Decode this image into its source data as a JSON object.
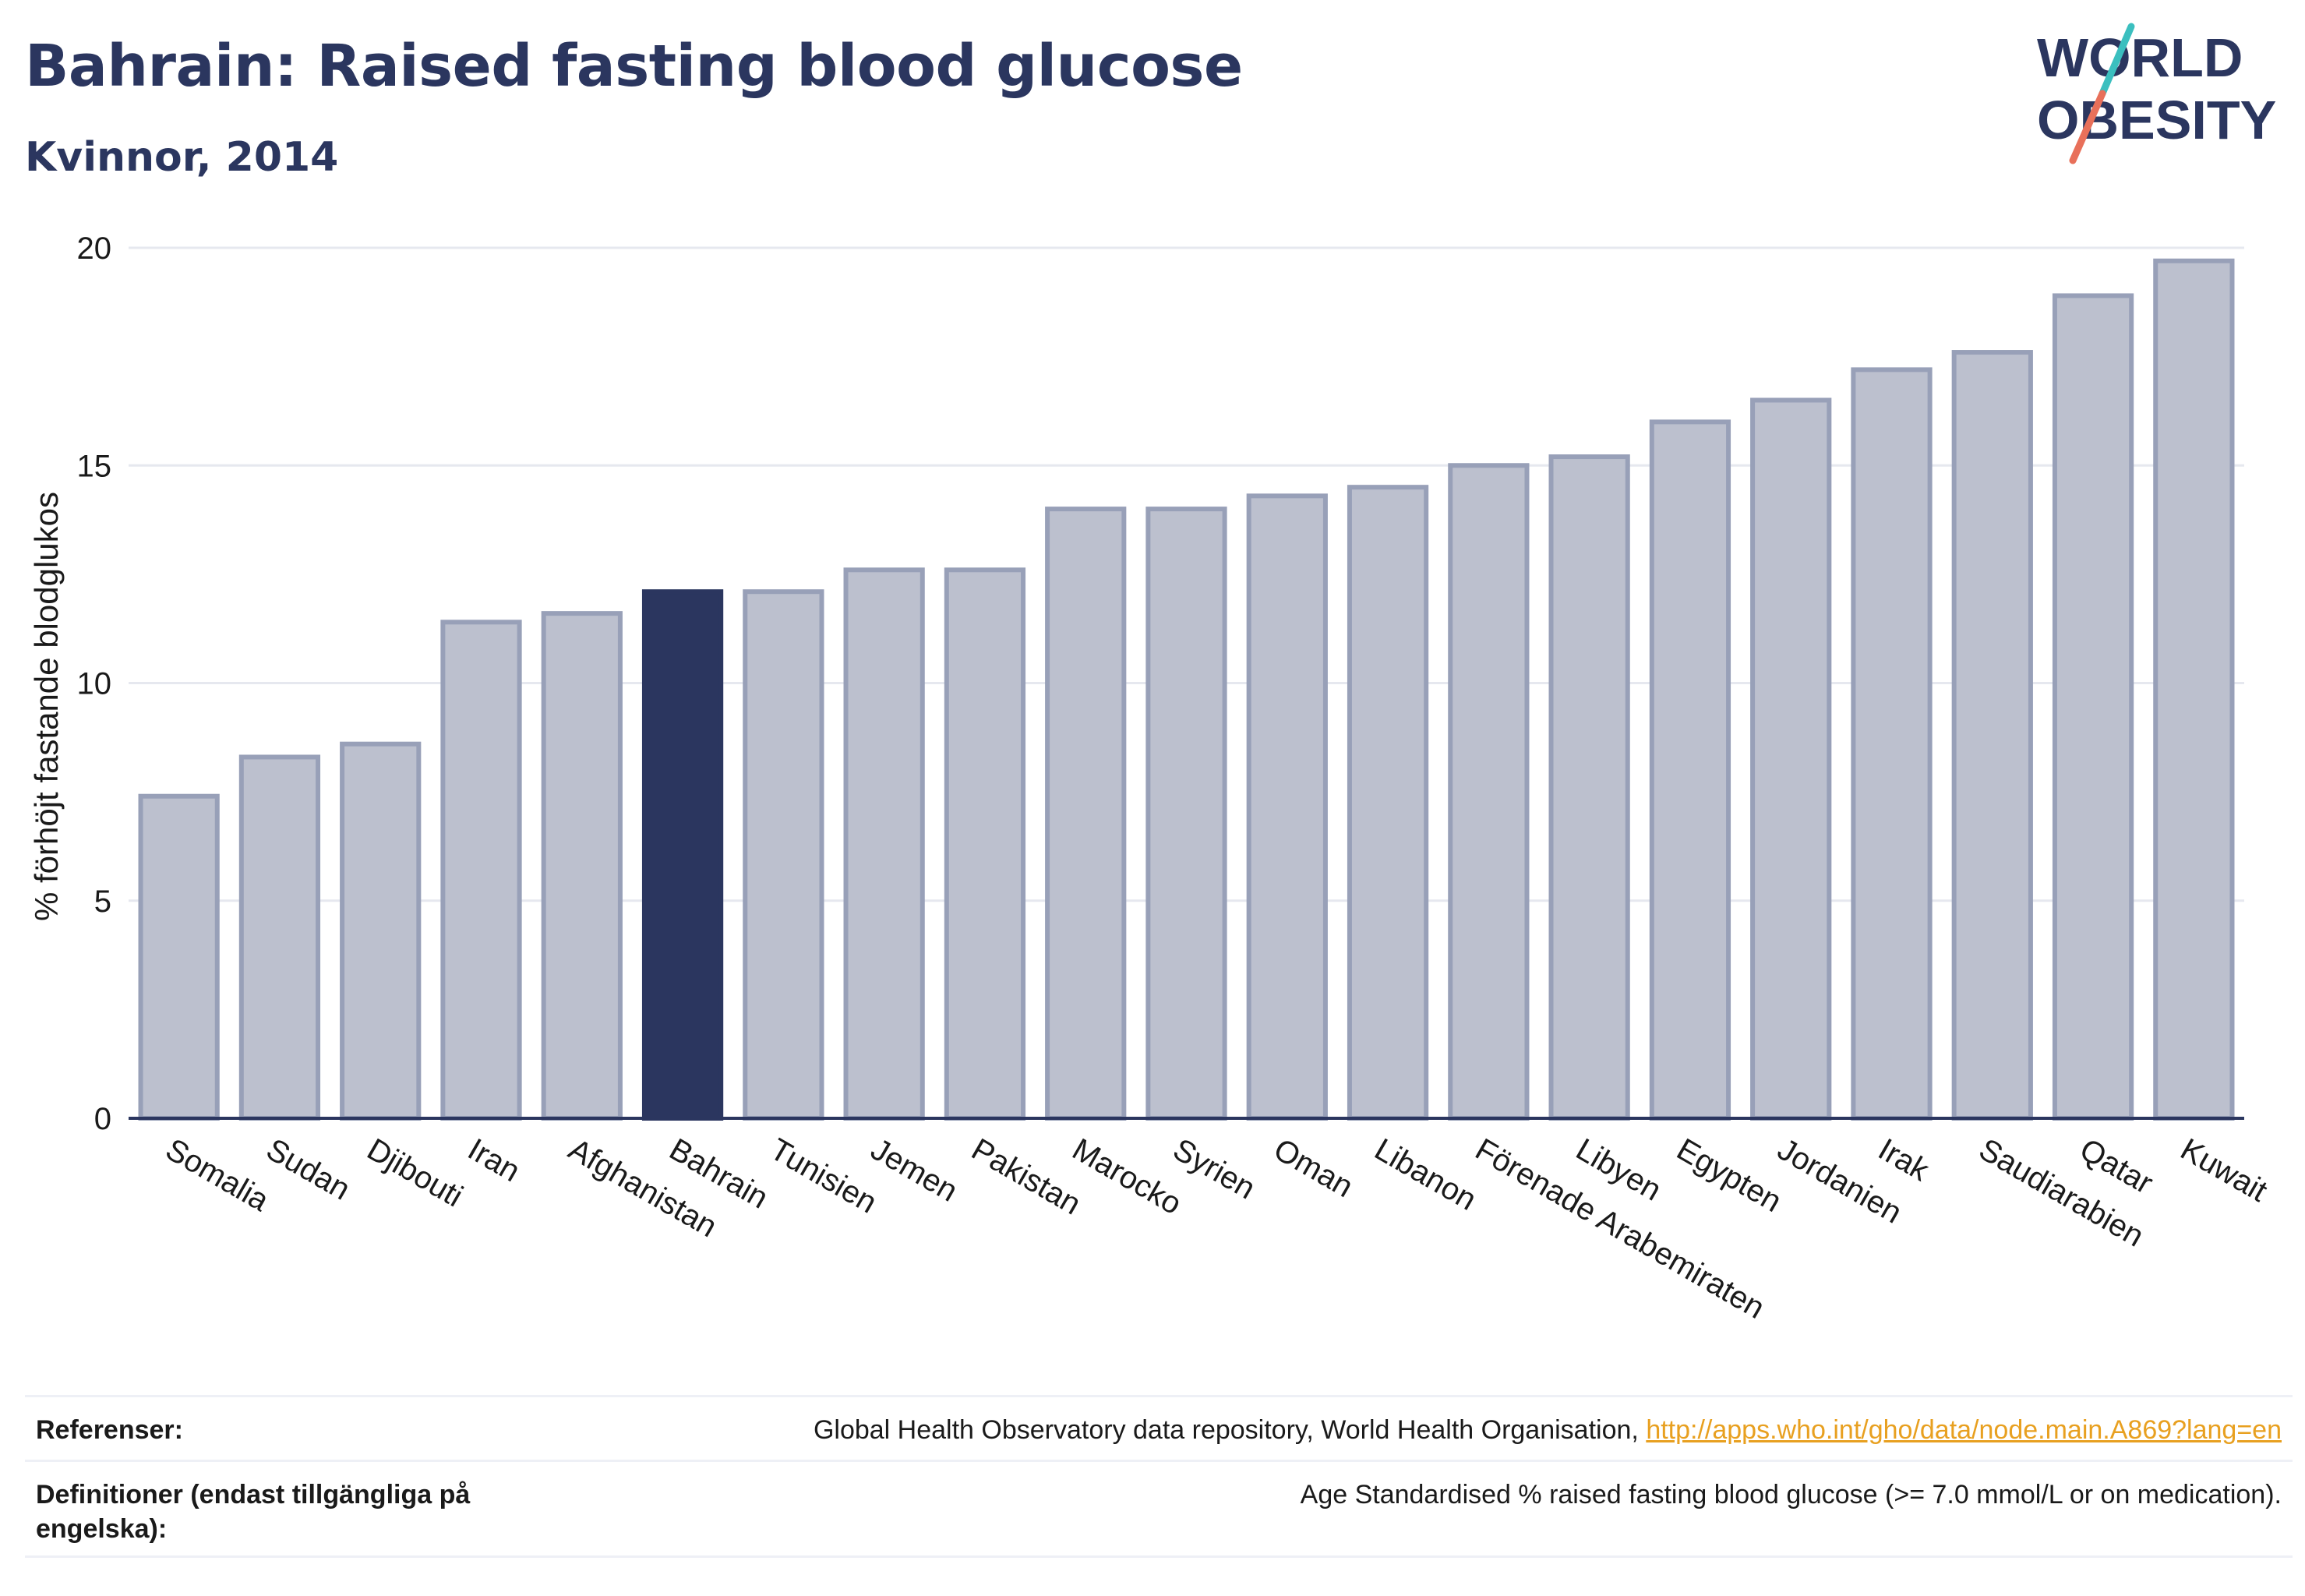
{
  "header": {
    "title": "Bahrain: Raised fasting blood glucose",
    "subtitle": "Kvinnor, 2014"
  },
  "logo": {
    "line1": "WORLD",
    "line2": "OBESITY",
    "colors": {
      "text": "#2b365f",
      "slash_top": "#3bbfbf",
      "slash_bottom": "#e8705a"
    }
  },
  "chart_data": {
    "type": "bar",
    "title": "Bahrain: Raised fasting blood glucose",
    "subtitle": "Kvinnor, 2014",
    "ylabel": "% förhöjt fastande blodglukos",
    "xlabel": "",
    "ylim": [
      0,
      20
    ],
    "yticks": [
      0,
      5,
      10,
      15,
      20
    ],
    "grid": true,
    "highlight": "Bahrain",
    "colors": {
      "bar": "#bcc0ce",
      "bar_border": "#98a0b8",
      "highlight": "#2b365f",
      "grid": "#e6e8ef",
      "axis": "#2b365f"
    },
    "categories": [
      "Somalia",
      "Sudan",
      "Djibouti",
      "Iran",
      "Afghanistan",
      "Bahrain",
      "Tunisien",
      "Jemen",
      "Pakistan",
      "Marocko",
      "Syrien",
      "Oman",
      "Libanon",
      "Förenade Arabemiraten",
      "Libyen",
      "Egypten",
      "Jordanien",
      "Irak",
      "Saudiarabien",
      "Qatar",
      "Kuwait"
    ],
    "values": [
      7.4,
      8.3,
      8.6,
      11.4,
      11.6,
      12.1,
      12.1,
      12.6,
      12.6,
      14.0,
      14.0,
      14.3,
      14.5,
      15.0,
      15.2,
      16.0,
      16.5,
      17.2,
      17.6,
      18.9,
      19.7
    ]
  },
  "footer": {
    "references_label": "Referenser:",
    "references_text": "Global Health Observatory data repository, World Health Organisation, ",
    "references_link": "http://apps.who.int/gho/data/node.main.A869?lang=en",
    "definitions_label": "Definitioner (endast tillgängliga på engelska):",
    "definitions_text": "Age Standardised % raised fasting blood glucose (>= 7.0 mmol/L or on medication)."
  }
}
